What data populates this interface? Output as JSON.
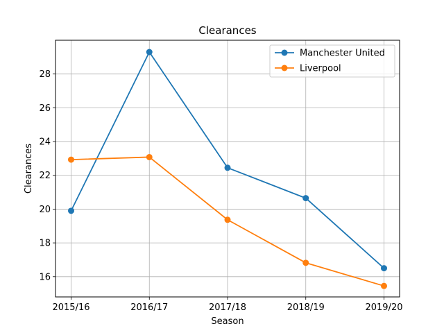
{
  "chart_data": {
    "type": "line",
    "title": "Clearances",
    "xlabel": "Season",
    "ylabel": "Clearances",
    "categories": [
      "2015/16",
      "2016/17",
      "2017/18",
      "2018/19",
      "2019/20"
    ],
    "series": [
      {
        "name": "Manchester United",
        "color": "#1f77b4",
        "marker": "circle",
        "values": [
          19.9,
          29.3,
          22.45,
          20.65,
          16.5
        ]
      },
      {
        "name": "Liverpool",
        "color": "#ff7f0e",
        "marker": "circle",
        "values": [
          22.93,
          23.08,
          19.37,
          16.82,
          15.45
        ]
      }
    ],
    "ylim": [
      14.8,
      30.0
    ],
    "yticks": [
      16,
      18,
      20,
      22,
      24,
      26,
      28
    ],
    "grid": true,
    "legend_position": "top-right"
  }
}
